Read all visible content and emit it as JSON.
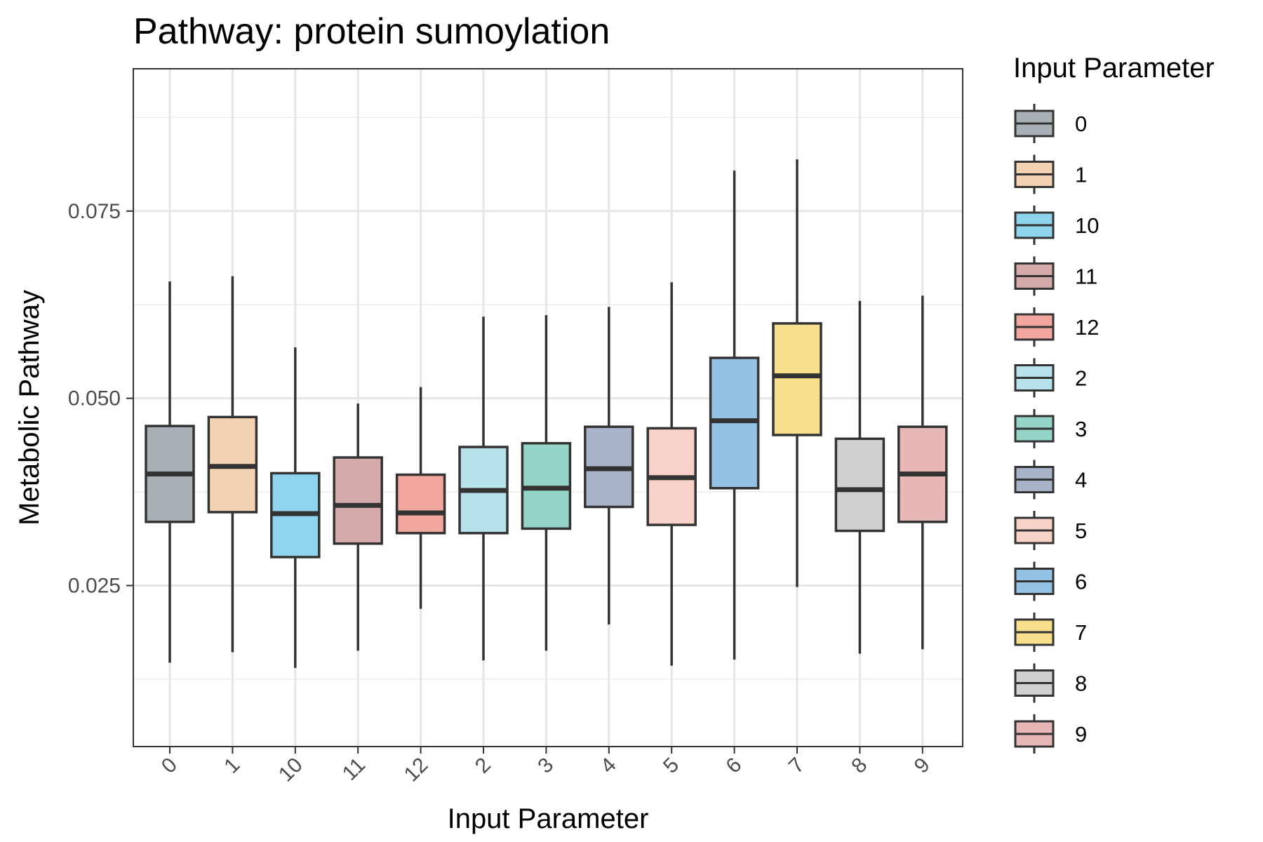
{
  "chart_data": {
    "type": "box",
    "title": "Pathway: protein sumoylation",
    "xlabel": "Input Parameter",
    "ylabel": "Metabolic Pathway",
    "ylim": [
      0.0035,
      0.094
    ],
    "yticks": [
      0.025,
      0.05,
      0.075
    ],
    "ytick_labels": [
      "0.025",
      "0.050",
      "0.075"
    ],
    "grid": true,
    "legend": {
      "title": "Input Parameter",
      "position": "right"
    },
    "categories": [
      "0",
      "1",
      "10",
      "11",
      "12",
      "2",
      "3",
      "4",
      "5",
      "6",
      "7",
      "8",
      "9"
    ],
    "series": [
      {
        "name": "0",
        "color": "#A7B0B4",
        "whisker_low": 0.0147,
        "q1": 0.0335,
        "median": 0.0399,
        "q3": 0.0463,
        "whisker_high": 0.0656
      },
      {
        "name": "1",
        "color": "#F2D2B2",
        "whisker_low": 0.0161,
        "q1": 0.0348,
        "median": 0.0409,
        "q3": 0.0475,
        "whisker_high": 0.0663
      },
      {
        "name": "10",
        "color": "#8ED4EC",
        "whisker_low": 0.014,
        "q1": 0.0288,
        "median": 0.0346,
        "q3": 0.04,
        "whisker_high": 0.0568
      },
      {
        "name": "11",
        "color": "#D5AAAA",
        "whisker_low": 0.0163,
        "q1": 0.0306,
        "median": 0.0357,
        "q3": 0.0421,
        "whisker_high": 0.0493
      },
      {
        "name": "12",
        "color": "#F1A69E",
        "whisker_low": 0.0219,
        "q1": 0.032,
        "median": 0.0347,
        "q3": 0.0398,
        "whisker_high": 0.0515
      },
      {
        "name": "2",
        "color": "#B7E1EB",
        "whisker_low": 0.015,
        "q1": 0.032,
        "median": 0.0377,
        "q3": 0.0435,
        "whisker_high": 0.0609
      },
      {
        "name": "3",
        "color": "#94D5C8",
        "whisker_low": 0.0163,
        "q1": 0.0326,
        "median": 0.038,
        "q3": 0.044,
        "whisker_high": 0.0611
      },
      {
        "name": "4",
        "color": "#A8B3C9",
        "whisker_low": 0.0198,
        "q1": 0.0355,
        "median": 0.0406,
        "q3": 0.0462,
        "whisker_high": 0.0622
      },
      {
        "name": "5",
        "color": "#F8D2C8",
        "whisker_low": 0.0143,
        "q1": 0.0331,
        "median": 0.0394,
        "q3": 0.046,
        "whisker_high": 0.0655
      },
      {
        "name": "6",
        "color": "#93C2E4",
        "whisker_low": 0.0151,
        "q1": 0.038,
        "median": 0.047,
        "q3": 0.0554,
        "whisker_high": 0.0804
      },
      {
        "name": "7",
        "color": "#F7DF8C",
        "whisker_low": 0.0248,
        "q1": 0.0451,
        "median": 0.053,
        "q3": 0.06,
        "whisker_high": 0.0819
      },
      {
        "name": "8",
        "color": "#D0D0D0",
        "whisker_low": 0.0159,
        "q1": 0.0323,
        "median": 0.0378,
        "q3": 0.0446,
        "whisker_high": 0.063
      },
      {
        "name": "9",
        "color": "#E7B7B7",
        "whisker_low": 0.0165,
        "q1": 0.0335,
        "median": 0.0399,
        "q3": 0.0462,
        "whisker_high": 0.0637
      }
    ]
  }
}
